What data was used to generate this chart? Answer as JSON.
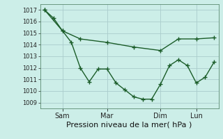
{
  "xlabel": "Pression niveau de la mer( hPa )",
  "bg_color": "#cceee8",
  "grid_color": "#aacccc",
  "line_color": "#1a5c28",
  "ylim": [
    1008.5,
    1017.5
  ],
  "yticks": [
    1009,
    1010,
    1011,
    1012,
    1013,
    1014,
    1015,
    1016,
    1017
  ],
  "xtick_labels": [
    "Sam",
    "Mar",
    "Dim",
    "Lun"
  ],
  "xtick_positions": [
    2,
    7,
    13,
    17
  ],
  "xlim": [
    -0.5,
    19.5
  ],
  "series1_x": [
    0,
    1,
    2,
    3,
    4,
    5,
    6,
    7,
    8,
    9,
    10,
    11,
    12,
    13,
    14,
    15,
    16,
    17,
    18,
    19
  ],
  "series1_y": [
    1017.0,
    1016.3,
    1015.2,
    1014.2,
    1012.0,
    1010.8,
    1011.9,
    1011.9,
    1010.7,
    1010.1,
    1009.5,
    1009.3,
    1009.3,
    1010.6,
    1012.2,
    1012.7,
    1012.2,
    1010.7,
    1011.2,
    1012.5
  ],
  "series2_x": [
    0,
    2,
    4,
    7,
    10,
    13,
    15,
    17,
    19
  ],
  "series2_y": [
    1017.0,
    1015.2,
    1014.5,
    1014.2,
    1013.8,
    1013.5,
    1014.5,
    1014.5,
    1014.6
  ],
  "marker_size": 3.0,
  "linewidth": 1.0,
  "ytick_fontsize": 6,
  "xtick_fontsize": 7,
  "xlabel_fontsize": 8
}
